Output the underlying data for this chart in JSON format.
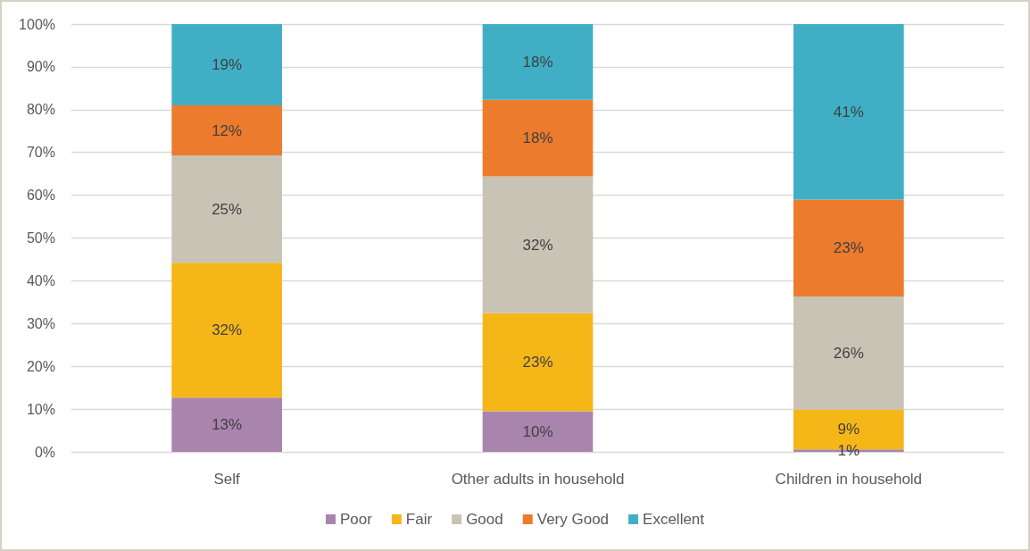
{
  "chart_data": {
    "type": "bar",
    "stacked": true,
    "categories": [
      "Self",
      "Other adults in household",
      "Children in household"
    ],
    "series": [
      {
        "name": "Poor",
        "color": "#a984ad",
        "values": [
          12.7,
          9.5,
          0.6
        ],
        "value_labels": [
          "13%",
          "10%",
          "1%"
        ]
      },
      {
        "name": "Fair",
        "color": "#f5b618",
        "values": [
          31.5,
          22.9,
          9.3
        ],
        "value_labels": [
          "32%",
          "23%",
          "9%"
        ]
      },
      {
        "name": "Good",
        "color": "#c9c3b5",
        "values": [
          25.1,
          32.0,
          26.4
        ],
        "value_labels": [
          "25%",
          "32%",
          "26%"
        ]
      },
      {
        "name": "Very Good",
        "color": "#ec7b2d",
        "values": [
          11.7,
          17.9,
          22.7
        ],
        "value_labels": [
          "12%",
          "18%",
          "23%"
        ]
      },
      {
        "name": "Excellent",
        "color": "#40afc6",
        "values": [
          19.0,
          17.7,
          41.0
        ],
        "value_labels": [
          "19%",
          "18%",
          "41%"
        ]
      }
    ],
    "ylim": [
      0,
      100
    ],
    "yticks": [
      {
        "value": 0,
        "label": "0%"
      },
      {
        "value": 10,
        "label": "10%"
      },
      {
        "value": 20,
        "label": "20%"
      },
      {
        "value": 30,
        "label": "30%"
      },
      {
        "value": 40,
        "label": "40%"
      },
      {
        "value": 50,
        "label": "50%"
      },
      {
        "value": 60,
        "label": "60%"
      },
      {
        "value": 70,
        "label": "70%"
      },
      {
        "value": 80,
        "label": "80%"
      },
      {
        "value": 90,
        "label": "90%"
      },
      {
        "value": 100,
        "label": "100%"
      }
    ],
    "grid": "y",
    "legend": "bottom"
  }
}
